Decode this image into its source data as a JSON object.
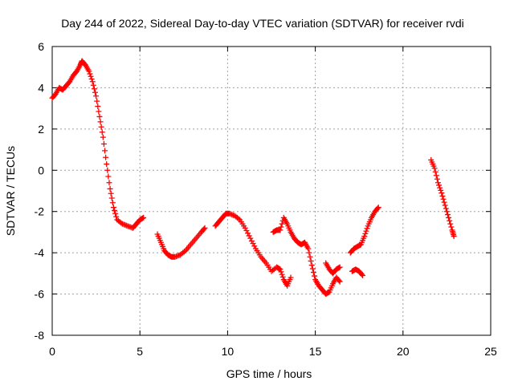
{
  "chart_data": {
    "type": "scatter",
    "title": "Day 244 of 2022, Sidereal Day-to-day VTEC variation (SDTVAR) for receiver rvdi",
    "xlabel": "GPS time / hours",
    "ylabel": "SDTVAR / TECUs",
    "xlim": [
      0,
      25
    ],
    "ylim": [
      -8,
      6
    ],
    "xticks": [
      0,
      5,
      10,
      15,
      20,
      25
    ],
    "yticks": [
      -8,
      -6,
      -4,
      -2,
      0,
      2,
      4,
      6
    ],
    "xtick_labels": [
      "0",
      "5",
      "10",
      "15",
      "20",
      "25"
    ],
    "ytick_labels": [
      "-8",
      "-6",
      "-4",
      "-2",
      "0",
      "2",
      "4",
      "6"
    ],
    "grid": true,
    "marker": "+",
    "colors": {
      "series": "#ff0000",
      "grid": "#a0a0a0",
      "axis": "#000000"
    },
    "series": [
      {
        "segments": [
          [
            [
              0.0,
              3.5
            ],
            [
              0.2,
              3.7
            ],
            [
              0.4,
              4.0
            ],
            [
              0.6,
              3.9
            ],
            [
              0.8,
              4.1
            ],
            [
              1.0,
              4.3
            ],
            [
              1.2,
              4.6
            ],
            [
              1.4,
              4.8
            ],
            [
              1.6,
              5.1
            ],
            [
              1.7,
              5.3
            ],
            [
              1.9,
              5.1
            ],
            [
              2.1,
              4.8
            ],
            [
              2.3,
              4.3
            ],
            [
              2.5,
              3.6
            ],
            [
              2.7,
              2.6
            ],
            [
              2.9,
              1.6
            ],
            [
              3.1,
              0.3
            ],
            [
              3.3,
              -0.9
            ],
            [
              3.5,
              -1.8
            ],
            [
              3.7,
              -2.4
            ],
            [
              4.0,
              -2.6
            ],
            [
              4.3,
              -2.7
            ],
            [
              4.6,
              -2.8
            ],
            [
              4.8,
              -2.6
            ],
            [
              5.0,
              -2.4
            ],
            [
              5.2,
              -2.3
            ]
          ],
          [
            [
              6.0,
              -3.1
            ],
            [
              6.2,
              -3.5
            ],
            [
              6.4,
              -3.9
            ],
            [
              6.6,
              -4.1
            ],
            [
              6.8,
              -4.2
            ],
            [
              7.0,
              -4.2
            ],
            [
              7.3,
              -4.1
            ],
            [
              7.6,
              -3.9
            ],
            [
              7.9,
              -3.6
            ],
            [
              8.2,
              -3.3
            ],
            [
              8.5,
              -3.0
            ],
            [
              8.7,
              -2.8
            ]
          ],
          [
            [
              9.3,
              -2.7
            ],
            [
              9.5,
              -2.5
            ],
            [
              9.7,
              -2.3
            ],
            [
              9.9,
              -2.1
            ],
            [
              10.1,
              -2.1
            ],
            [
              10.4,
              -2.2
            ],
            [
              10.7,
              -2.4
            ],
            [
              11.0,
              -2.8
            ],
            [
              11.3,
              -3.3
            ],
            [
              11.6,
              -3.8
            ],
            [
              11.9,
              -4.2
            ],
            [
              12.2,
              -4.5
            ],
            [
              12.5,
              -4.9
            ],
            [
              12.8,
              -4.7
            ],
            [
              13.0,
              -4.8
            ],
            [
              13.2,
              -5.3
            ],
            [
              13.4,
              -5.6
            ],
            [
              13.6,
              -5.2
            ]
          ],
          [
            [
              12.6,
              -3.0
            ],
            [
              12.8,
              -2.9
            ],
            [
              13.0,
              -2.9
            ],
            [
              13.2,
              -2.3
            ],
            [
              13.4,
              -2.6
            ],
            [
              13.6,
              -3.0
            ],
            [
              13.8,
              -3.3
            ],
            [
              14.0,
              -3.5
            ],
            [
              14.2,
              -3.6
            ],
            [
              14.4,
              -3.5
            ],
            [
              14.6,
              -3.8
            ],
            [
              14.8,
              -4.6
            ],
            [
              15.0,
              -5.3
            ],
            [
              15.2,
              -5.6
            ],
            [
              15.4,
              -5.8
            ],
            [
              15.6,
              -6.0
            ],
            [
              15.8,
              -5.9
            ],
            [
              16.0,
              -5.5
            ],
            [
              16.2,
              -5.2
            ],
            [
              16.4,
              -5.4
            ]
          ],
          [
            [
              15.6,
              -4.5
            ],
            [
              15.8,
              -4.8
            ],
            [
              16.0,
              -5.0
            ],
            [
              16.2,
              -4.8
            ],
            [
              16.4,
              -4.7
            ]
          ],
          [
            [
              17.1,
              -4.9
            ],
            [
              17.3,
              -4.8
            ],
            [
              17.5,
              -4.9
            ],
            [
              17.7,
              -5.1
            ]
          ],
          [
            [
              17.0,
              -4.0
            ],
            [
              17.2,
              -3.8
            ],
            [
              17.4,
              -3.7
            ],
            [
              17.6,
              -3.6
            ],
            [
              17.8,
              -3.2
            ],
            [
              18.0,
              -2.7
            ],
            [
              18.2,
              -2.3
            ],
            [
              18.4,
              -2.0
            ],
            [
              18.6,
              -1.8
            ]
          ],
          [
            [
              21.6,
              0.5
            ],
            [
              21.8,
              0.1
            ],
            [
              22.0,
              -0.6
            ],
            [
              22.2,
              -1.1
            ],
            [
              22.4,
              -1.7
            ],
            [
              22.6,
              -2.3
            ],
            [
              22.8,
              -2.9
            ],
            [
              22.9,
              -3.2
            ]
          ]
        ]
      }
    ]
  }
}
